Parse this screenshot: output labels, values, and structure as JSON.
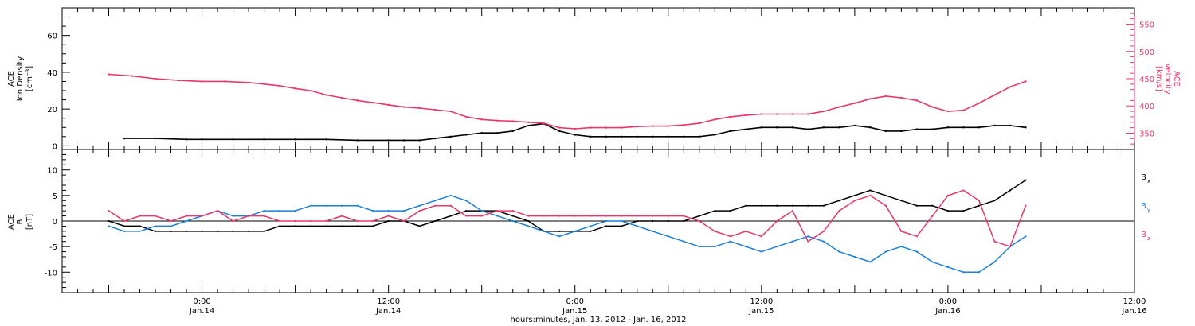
{
  "chart_data": [
    {
      "type": "line",
      "panel": "top",
      "ylabel_left": [
        "ACE",
        "Ion Density",
        "[cm⁻³]"
      ],
      "ylabel_right": [
        "ACE",
        "Velocity",
        "[km/s]"
      ],
      "ylim_left": [
        -2,
        75
      ],
      "ylim_right": [
        320,
        580
      ],
      "yticks_left": [
        0,
        20,
        40,
        60
      ],
      "yticks_right": [
        350,
        400,
        450,
        500,
        550
      ],
      "colors": {
        "density": "#000000",
        "velocity": "#e8386a"
      },
      "series": [
        {
          "axis": "left",
          "color": "#000000",
          "x": [
            -10,
            -6,
            -2,
            0,
            4,
            8,
            12,
            16,
            20,
            24,
            26,
            28,
            30,
            32,
            34,
            36,
            38,
            40,
            42,
            44,
            46,
            48,
            50,
            52,
            54,
            56,
            58,
            60,
            62,
            64,
            66,
            68,
            70,
            72,
            74,
            76,
            78,
            80,
            82,
            84,
            86,
            88,
            90,
            92,
            94,
            96,
            98,
            100,
            102,
            104,
            106
          ],
          "values": [
            4,
            4,
            3.5,
            3.5,
            3.5,
            3.5,
            3.5,
            3.5,
            3,
            3,
            3,
            3,
            4,
            5,
            6,
            7,
            7,
            8,
            11,
            12,
            8,
            6,
            5,
            5,
            5,
            5,
            5,
            5,
            5,
            5,
            6,
            8,
            9,
            10,
            10,
            10,
            9,
            10,
            10,
            11,
            10,
            8,
            8,
            9,
            9,
            10,
            10,
            10,
            11,
            11,
            10
          ]
        },
        {
          "axis": "right",
          "color": "#e8386a",
          "x": [
            -12,
            -9,
            -6,
            -3,
            0,
            3,
            6,
            8,
            10,
            12,
            14,
            16,
            18,
            20,
            22,
            24,
            26,
            28,
            30,
            32,
            34,
            36,
            38,
            40,
            42,
            44,
            46,
            48,
            50,
            52,
            54,
            56,
            58,
            60,
            62,
            64,
            66,
            68,
            70,
            72,
            74,
            76,
            78,
            80,
            82,
            84,
            86,
            88,
            90,
            92,
            94,
            96,
            98,
            100,
            102,
            104,
            106
          ],
          "values": [
            458,
            455,
            450,
            447,
            445,
            445,
            443,
            440,
            437,
            432,
            428,
            420,
            415,
            410,
            406,
            402,
            398,
            396,
            393,
            390,
            380,
            375,
            373,
            372,
            370,
            368,
            360,
            358,
            360,
            360,
            360,
            362,
            363,
            363,
            365,
            368,
            375,
            380,
            383,
            385,
            385,
            385,
            385,
            390,
            398,
            405,
            413,
            418,
            415,
            410,
            398,
            390,
            392,
            405,
            420,
            435,
            445
          ]
        }
      ]
    },
    {
      "type": "line",
      "panel": "bottom",
      "ylabel_left": [
        "ACE",
        "B",
        "[nT]"
      ],
      "ylim": [
        -14,
        14
      ],
      "yticks": [
        -10,
        -5,
        0,
        5,
        10
      ],
      "legend": [
        {
          "label": "B",
          "sub": "x",
          "color": "#000000"
        },
        {
          "label": "B",
          "sub": "y",
          "color": "#1e7fd8"
        },
        {
          "label": "B",
          "sub": "z",
          "color": "#e8386a"
        }
      ],
      "series": [
        {
          "color": "#000000",
          "x": [
            -12,
            -10,
            -8,
            -6,
            -4,
            -2,
            0,
            2,
            4,
            6,
            8,
            10,
            12,
            14,
            16,
            18,
            20,
            22,
            24,
            26,
            28,
            30,
            32,
            34,
            36,
            38,
            40,
            42,
            44,
            46,
            48,
            50,
            52,
            54,
            56,
            58,
            60,
            62,
            64,
            66,
            68,
            70,
            72,
            74,
            76,
            78,
            80,
            82,
            84,
            86,
            88,
            90,
            92,
            94,
            96,
            98,
            100,
            102,
            104,
            106
          ],
          "values": [
            0,
            -1,
            -1,
            -2,
            -2,
            -2,
            -2,
            -2,
            -2,
            -2,
            -2,
            -1,
            -1,
            -1,
            -1,
            -1,
            -1,
            -1,
            0,
            0,
            -1,
            0,
            1,
            2,
            2,
            2,
            1,
            0,
            -2,
            -2,
            -2,
            -2,
            -1,
            -1,
            0,
            0,
            0,
            0,
            1,
            2,
            2,
            3,
            3,
            3,
            3,
            3,
            3,
            4,
            5,
            6,
            5,
            4,
            3,
            3,
            2,
            2,
            3,
            4,
            6,
            8
          ]
        },
        {
          "color": "#1e7fd8",
          "x": [
            -12,
            -10,
            -8,
            -6,
            -4,
            -2,
            0,
            2,
            4,
            6,
            8,
            10,
            12,
            14,
            16,
            18,
            20,
            22,
            24,
            26,
            28,
            30,
            32,
            34,
            36,
            38,
            40,
            42,
            44,
            46,
            48,
            50,
            52,
            54,
            56,
            58,
            60,
            62,
            64,
            66,
            68,
            70,
            72,
            74,
            76,
            78,
            80,
            82,
            84,
            86,
            88,
            90,
            92,
            94,
            96,
            98,
            100,
            102,
            104,
            106
          ],
          "values": [
            -1,
            -2,
            -2,
            -1,
            -1,
            0,
            1,
            2,
            1,
            1,
            2,
            2,
            2,
            3,
            3,
            3,
            3,
            2,
            2,
            2,
            3,
            4,
            5,
            4,
            2,
            1,
            0,
            -1,
            -2,
            -3,
            -2,
            -1,
            0,
            0,
            -1,
            -2,
            -3,
            -4,
            -5,
            -5,
            -4,
            -5,
            -6,
            -5,
            -4,
            -3,
            -4,
            -6,
            -7,
            -8,
            -6,
            -5,
            -6,
            -8,
            -9,
            -10,
            -10,
            -8,
            -5,
            -3
          ]
        },
        {
          "color": "#e8386a",
          "x": [
            -12,
            -10,
            -8,
            -6,
            -4,
            -2,
            0,
            2,
            4,
            6,
            8,
            10,
            12,
            14,
            16,
            18,
            20,
            22,
            24,
            26,
            28,
            30,
            32,
            34,
            36,
            38,
            40,
            42,
            44,
            46,
            48,
            50,
            52,
            54,
            56,
            58,
            60,
            62,
            64,
            66,
            68,
            70,
            72,
            74,
            76,
            78,
            80,
            82,
            84,
            86,
            88,
            90,
            92,
            94,
            96,
            98,
            100,
            102,
            104,
            106
          ],
          "values": [
            2,
            0,
            1,
            1,
            0,
            1,
            1,
            2,
            0,
            1,
            1,
            0,
            0,
            0,
            0,
            1,
            0,
            0,
            1,
            0,
            2,
            3,
            3,
            1,
            1,
            2,
            2,
            1,
            1,
            1,
            1,
            1,
            1,
            1,
            1,
            1,
            1,
            1,
            0,
            -2,
            -3,
            -2,
            -3,
            0,
            2,
            -4,
            -2,
            2,
            4,
            5,
            3,
            -2,
            -3,
            1,
            5,
            6,
            4,
            -4,
            -5,
            3
          ]
        }
      ]
    }
  ],
  "x_axis": {
    "xlim": [
      -18,
      120
    ],
    "major_ticks": [
      {
        "x": 0,
        "line1": "0:00",
        "line2": "Jan.14"
      },
      {
        "x": 24,
        "line1": "12:00",
        "line2": "Jan.14"
      },
      {
        "x": 48,
        "line1": "0:00",
        "line2": "Jan.15"
      },
      {
        "x": 72,
        "line1": "12:00",
        "line2": "Jan.15"
      },
      {
        "x": 96,
        "line1": "0:00",
        "line2": "Jan.16"
      },
      {
        "x": 120,
        "line1": "12:00",
        "line2": "Jan.16"
      }
    ],
    "xlabel": "hours:minutes, Jan. 13, 2012 - Jan. 16, 2012"
  }
}
